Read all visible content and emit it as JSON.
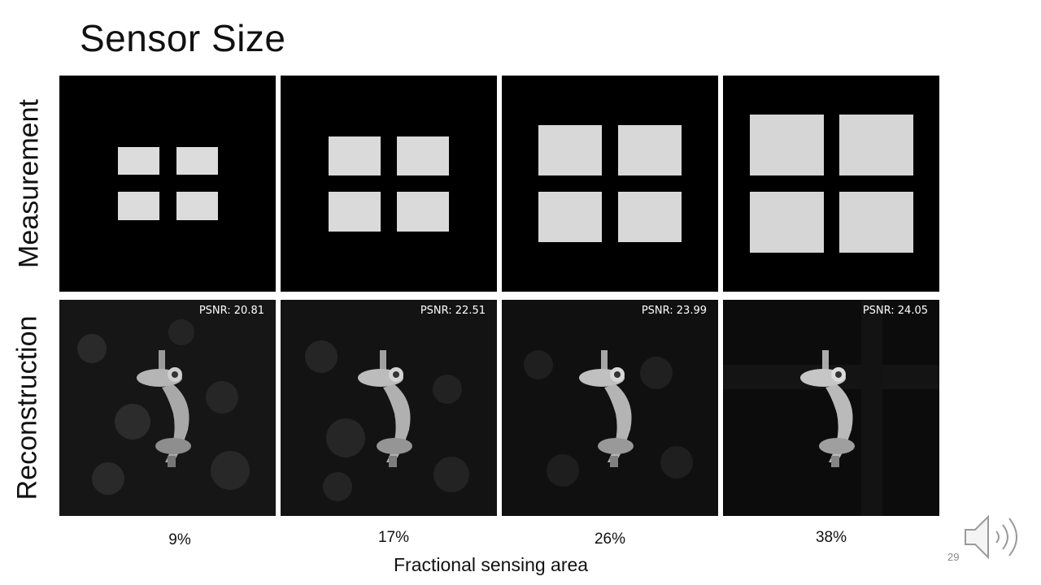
{
  "slide": {
    "title": "Sensor Size",
    "page_number": "29"
  },
  "rows": {
    "measurement_label": "Measurement",
    "reconstruction_label": "Reconstruction"
  },
  "columns": [
    {
      "fraction_label": "9%",
      "psnr_label": "PSNR: 20.81"
    },
    {
      "fraction_label": "17%",
      "psnr_label": "PSNR: 22.51"
    },
    {
      "fraction_label": "26%",
      "psnr_label": "PSNR: 23.99"
    },
    {
      "fraction_label": "38%",
      "psnr_label": "PSNR: 24.05"
    }
  ],
  "x_axis_label": "Fractional sensing area",
  "icons": {
    "audio": "speaker-icon"
  }
}
